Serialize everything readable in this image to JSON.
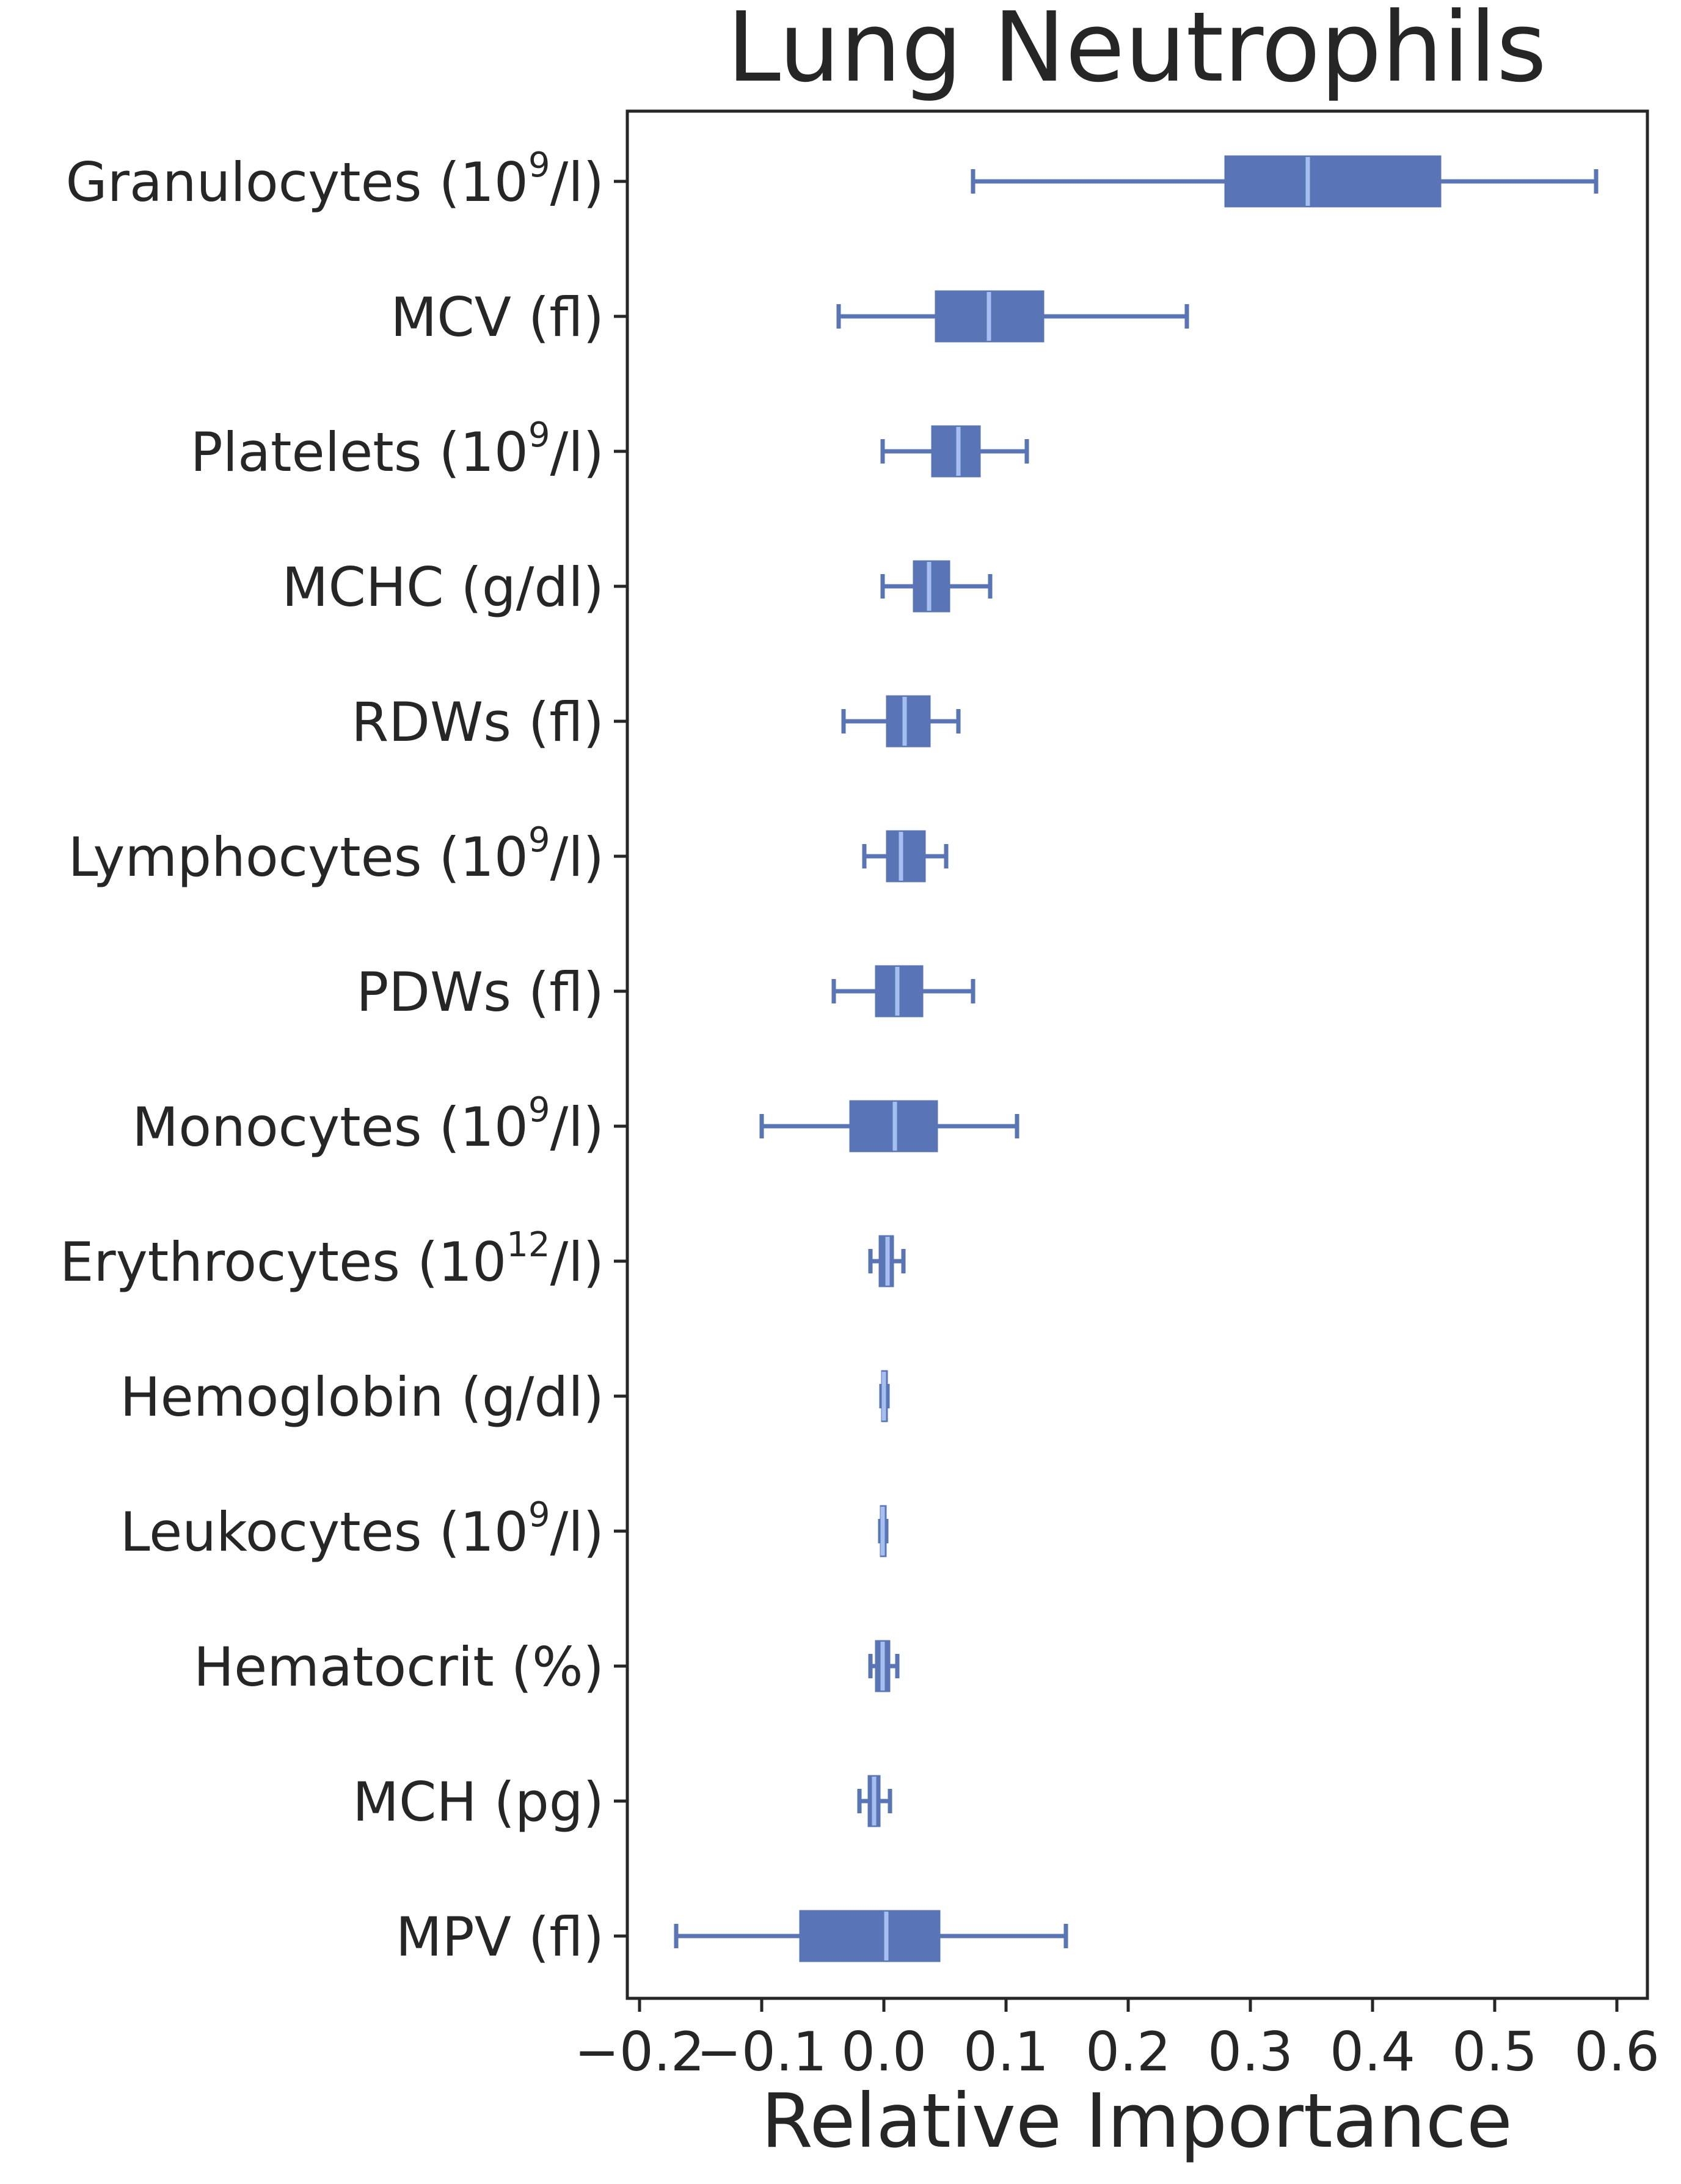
{
  "chart_data": {
    "type": "box",
    "orientation": "horizontal",
    "title": "Lung Neutrophils",
    "xlabel": "Relative Importance",
    "ylabel": "",
    "xlim": [
      -0.21,
      0.625
    ],
    "xticks": [
      -0.2,
      -0.1,
      0.0,
      0.1,
      0.2,
      0.3,
      0.4,
      0.5,
      0.6
    ],
    "xtick_labels": [
      "−0.2",
      "−0.1",
      "0.0",
      "0.1",
      "0.2",
      "0.3",
      "0.4",
      "0.5",
      "0.6"
    ],
    "grid": false,
    "box_color": "#5975b5",
    "median_color": "#a6bff0",
    "categories": [
      {
        "label": "Granulocytes (10",
        "sup": "9",
        "tail": "/l)"
      },
      {
        "label": "MCV (fl)",
        "sup": "",
        "tail": ""
      },
      {
        "label": "Platelets (10",
        "sup": "9",
        "tail": "/l)"
      },
      {
        "label": "MCHC (g/dl)",
        "sup": "",
        "tail": ""
      },
      {
        "label": "RDWs (fl)",
        "sup": "",
        "tail": ""
      },
      {
        "label": "Lymphocytes (10",
        "sup": "9",
        "tail": "/l)"
      },
      {
        "label": "PDWs (fl)",
        "sup": "",
        "tail": ""
      },
      {
        "label": "Monocytes (10",
        "sup": "9",
        "tail": "/l)"
      },
      {
        "label": "Erythrocytes (10",
        "sup": "12",
        "tail": "/l)"
      },
      {
        "label": "Hemoglobin (g/dl)",
        "sup": "",
        "tail": ""
      },
      {
        "label": "Leukocytes (10",
        "sup": "9",
        "tail": "/l)"
      },
      {
        "label": "Hematocrit (%)",
        "sup": "",
        "tail": ""
      },
      {
        "label": "MCH (pg)",
        "sup": "",
        "tail": ""
      },
      {
        "label": "MPV (fl)",
        "sup": "",
        "tail": ""
      }
    ],
    "boxes": [
      {
        "whisker_low": 0.073,
        "q1": 0.28,
        "median": 0.347,
        "q3": 0.455,
        "whisker_high": 0.583
      },
      {
        "whisker_low": -0.037,
        "q1": 0.043,
        "median": 0.086,
        "q3": 0.13,
        "whisker_high": 0.248
      },
      {
        "whisker_low": -0.001,
        "q1": 0.04,
        "median": 0.061,
        "q3": 0.078,
        "whisker_high": 0.117
      },
      {
        "whisker_low": -0.001,
        "q1": 0.025,
        "median": 0.037,
        "q3": 0.053,
        "whisker_high": 0.087
      },
      {
        "whisker_low": -0.033,
        "q1": 0.003,
        "median": 0.017,
        "q3": 0.037,
        "whisker_high": 0.061
      },
      {
        "whisker_low": -0.016,
        "q1": 0.003,
        "median": 0.014,
        "q3": 0.033,
        "whisker_high": 0.051
      },
      {
        "whisker_low": -0.041,
        "q1": -0.006,
        "median": 0.011,
        "q3": 0.031,
        "whisker_high": 0.073
      },
      {
        "whisker_low": -0.1,
        "q1": -0.027,
        "median": 0.009,
        "q3": 0.043,
        "whisker_high": 0.109
      },
      {
        "whisker_low": -0.011,
        "q1": -0.003,
        "median": 0.003,
        "q3": 0.007,
        "whisker_high": 0.016
      },
      {
        "whisker_low": -0.002,
        "q1": -0.001,
        "median": 0.0,
        "q3": 0.002,
        "whisker_high": 0.003
      },
      {
        "whisker_low": -0.003,
        "q1": -0.002,
        "median": -0.001,
        "q3": 0.001,
        "whisker_high": 0.002
      },
      {
        "whisker_low": -0.011,
        "q1": -0.006,
        "median": -0.001,
        "q3": 0.004,
        "whisker_high": 0.011
      },
      {
        "whisker_low": -0.02,
        "q1": -0.012,
        "median": -0.008,
        "q3": -0.004,
        "whisker_high": 0.005
      },
      {
        "whisker_low": -0.17,
        "q1": -0.068,
        "median": 0.002,
        "q3": 0.045,
        "whisker_high": 0.149
      }
    ]
  }
}
